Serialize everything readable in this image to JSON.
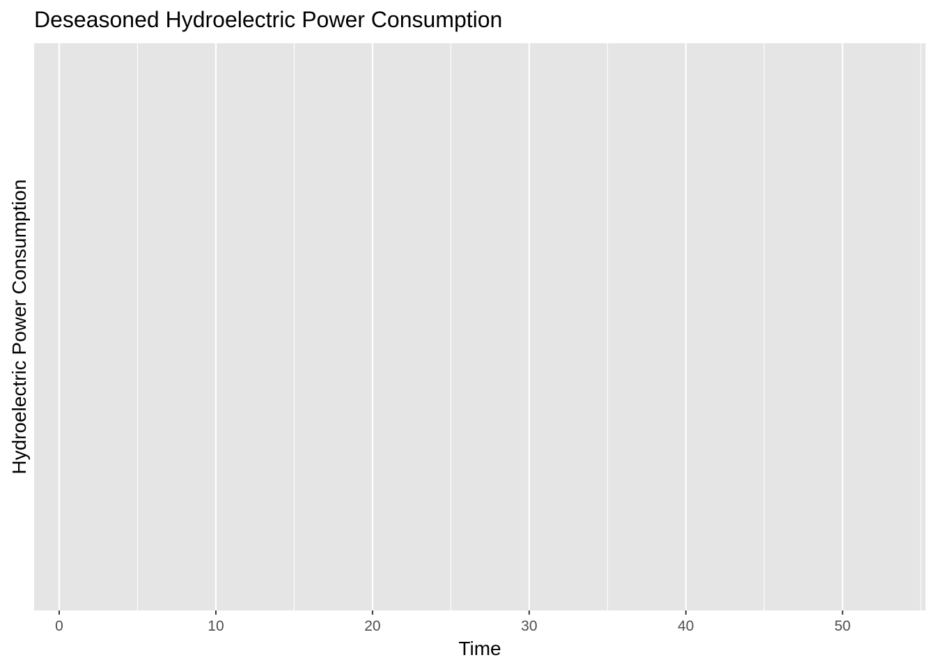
{
  "chart_data": {
    "type": "line",
    "title": "Deseasoned  Hydroelectric Power Consumption",
    "xlabel": "Time",
    "ylabel": "Hydroelectric Power Consumption",
    "xlim": [
      -1.6,
      55.3
    ],
    "x_ticks": [
      0,
      10,
      20,
      30,
      40,
      50
    ],
    "x_tick_labels": [
      "0",
      "10",
      "20",
      "30",
      "40",
      "50"
    ],
    "x_minor_ticks": [
      5,
      15,
      25,
      35,
      45,
      55
    ],
    "y_ticks": [],
    "series": [],
    "grid": true,
    "legend": "none",
    "panel_background": "#e5e5e5",
    "gridline_color": "#ffffff"
  }
}
